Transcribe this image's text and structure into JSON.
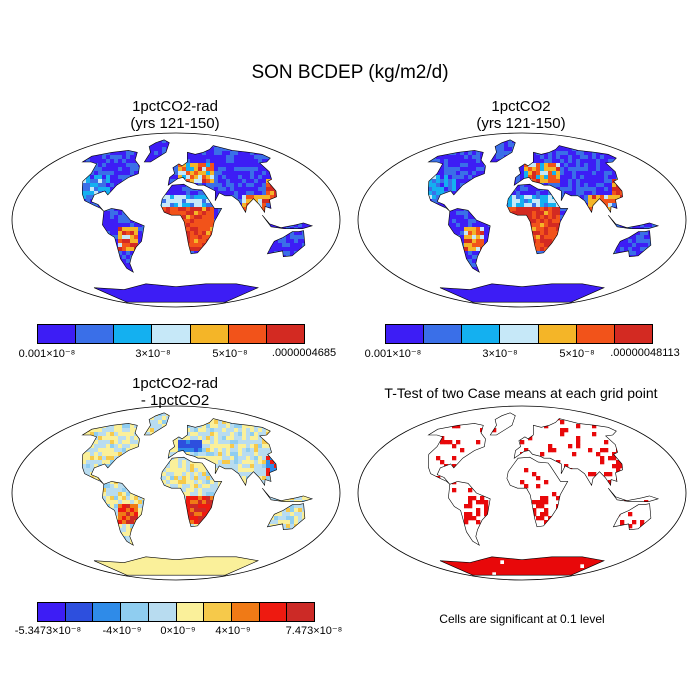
{
  "figure": {
    "title": "SON BCDEP (kg/m2/d)"
  },
  "panels": [
    {
      "id": "p1",
      "title_line1": "1pctCO2-rad",
      "title_line2": "(yrs 121-150)",
      "ticks": [
        "0.001×10⁻⁸",
        "3×10⁻⁸",
        "5×10⁻⁸",
        ".0000004685"
      ],
      "colors": [
        "#3d1df5",
        "#3a6fe8",
        "#14b0f0",
        "#c6e8f8",
        "#f4b528",
        "#f2531a",
        "#d32a22"
      ]
    },
    {
      "id": "p2",
      "title_line1": "1pctCO2",
      "title_line2": "(yrs 121-150)",
      "ticks": [
        "0.001×10⁻⁸",
        "3×10⁻⁸",
        "5×10⁻⁸",
        ".00000048113"
      ],
      "colors": [
        "#3d1df5",
        "#3a6fe8",
        "#14b0f0",
        "#c6e8f8",
        "#f4b528",
        "#f2531a",
        "#d32a22"
      ]
    },
    {
      "id": "p3",
      "title_line1": "1pctCO2-rad",
      "title_line2": "- 1pctCO2",
      "ticks": [
        "-5.3473×10⁻⁸",
        "-4×10⁻⁹",
        "0×10⁻⁹",
        "4×10⁻⁹",
        "7.473×10⁻⁸"
      ],
      "colors": [
        "#3d1df5",
        "#2d4fde",
        "#2f8be8",
        "#8fcdf0",
        "#b8dcf0",
        "#faf09a",
        "#f6c94a",
        "#f07a16",
        "#ee1a10",
        "#cc2a26"
      ]
    },
    {
      "id": "p4",
      "title_line1": "T-Test of two Case means at each grid point",
      "title_line2": "",
      "caption": "Cells are significant at 0.1 level",
      "colors": [
        "#e8080a"
      ]
    }
  ]
}
